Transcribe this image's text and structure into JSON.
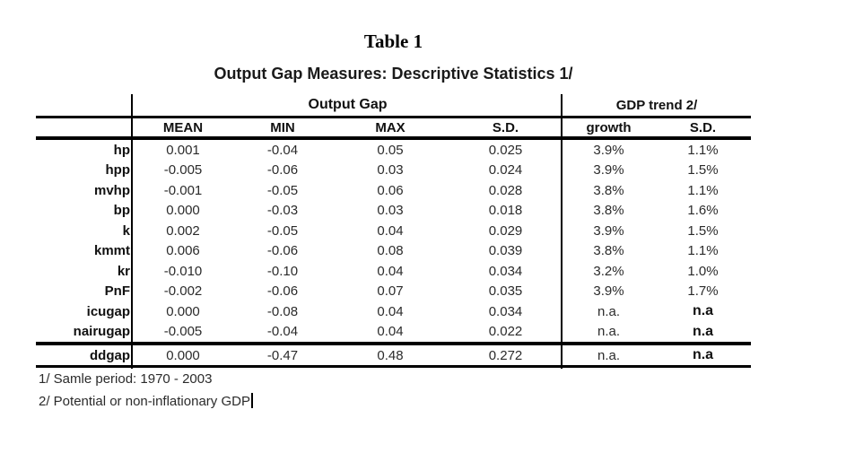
{
  "title": "Table 1",
  "subtitle": "Output Gap Measures: Descriptive Statistics 1/",
  "table": {
    "group_headers": {
      "output_gap": "Output Gap",
      "gdp_trend": "GDP trend 2/"
    },
    "columns": [
      "MEAN",
      "MIN",
      "MAX",
      "S.D.",
      "growth",
      "S.D."
    ],
    "rows": [
      {
        "label": "hp",
        "cells": [
          "0.001",
          "-0.04",
          "0.05",
          "0.025",
          "3.9%",
          "1.1%"
        ]
      },
      {
        "label": "hpp",
        "cells": [
          "-0.005",
          "-0.06",
          "0.03",
          "0.024",
          "3.9%",
          "1.5%"
        ]
      },
      {
        "label": "mvhp",
        "cells": [
          "-0.001",
          "-0.05",
          "0.06",
          "0.028",
          "3.8%",
          "1.1%"
        ]
      },
      {
        "label": "bp",
        "cells": [
          "0.000",
          "-0.03",
          "0.03",
          "0.018",
          "3.8%",
          "1.6%"
        ]
      },
      {
        "label": "k",
        "cells": [
          "0.002",
          "-0.05",
          "0.04",
          "0.029",
          "3.9%",
          "1.5%"
        ]
      },
      {
        "label": "kmmt",
        "cells": [
          "0.006",
          "-0.06",
          "0.08",
          "0.039",
          "3.8%",
          "1.1%"
        ]
      },
      {
        "label": "kr",
        "cells": [
          "-0.010",
          "-0.10",
          "0.04",
          "0.034",
          "3.2%",
          "1.0%"
        ]
      },
      {
        "label": "PnF",
        "cells": [
          "-0.002",
          "-0.06",
          "0.07",
          "0.035",
          "3.9%",
          "1.7%"
        ]
      },
      {
        "label": "icugap",
        "cells": [
          "0.000",
          "-0.08",
          "0.04",
          "0.034",
          "n.a.",
          "n.a"
        ]
      },
      {
        "label": "nairugap",
        "cells": [
          "-0.005",
          "-0.04",
          "0.04",
          "0.022",
          "n.a.",
          "n.a"
        ]
      },
      {
        "label": "ddgap",
        "cells": [
          "0.000",
          "-0.47",
          "0.48",
          "0.272",
          "n.a.",
          "n.a"
        ]
      }
    ]
  },
  "footnotes": {
    "note1": "1/ Samle period: 1970 - 2003",
    "note2": "2/ Potential or non-inflationary GDP"
  },
  "colors": {
    "text": "#1a1a1a",
    "rule": "#000000",
    "background": "#ffffff"
  }
}
